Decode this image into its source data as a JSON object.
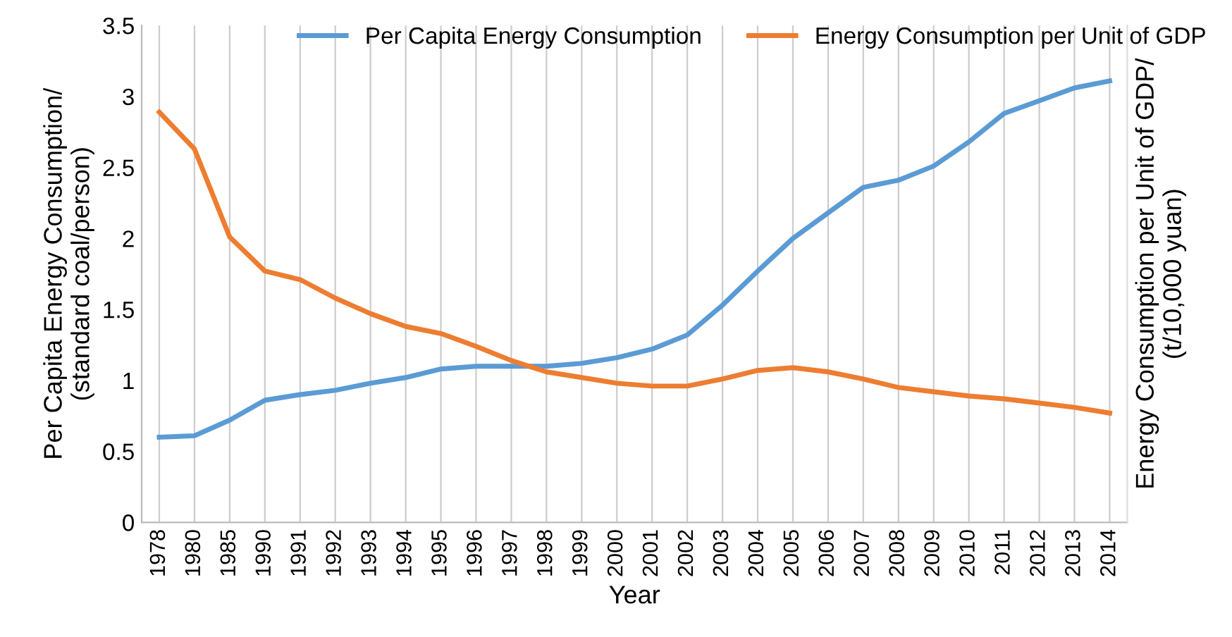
{
  "chart_data": {
    "type": "line",
    "categories": [
      "1978",
      "1980",
      "1985",
      "1990",
      "1991",
      "1992",
      "1993",
      "1994",
      "1995",
      "1996",
      "1997",
      "1998",
      "1999",
      "2000",
      "2001",
      "2002",
      "2003",
      "2004",
      "2005",
      "2006",
      "2007",
      "2008",
      "2009",
      "2010",
      "2011",
      "2012",
      "2013",
      "2014"
    ],
    "series": [
      {
        "name": "Per Capita Energy Consumption",
        "color": "#5b9bd5",
        "values": [
          0.6,
          0.61,
          0.72,
          0.86,
          0.9,
          0.93,
          0.98,
          1.02,
          1.08,
          1.1,
          1.1,
          1.1,
          1.12,
          1.16,
          1.22,
          1.32,
          1.53,
          1.77,
          2.0,
          2.18,
          2.36,
          2.41,
          2.51,
          2.68,
          2.88,
          2.97,
          3.06,
          3.11
        ]
      },
      {
        "name": "Energy Consumption per Unit of GDP",
        "color": "#ed7d31",
        "values": [
          2.89,
          2.63,
          2.01,
          1.77,
          1.71,
          1.58,
          1.47,
          1.38,
          1.33,
          1.24,
          1.14,
          1.06,
          1.02,
          0.98,
          0.96,
          0.96,
          1.01,
          1.07,
          1.09,
          1.06,
          1.01,
          0.95,
          0.92,
          0.89,
          0.87,
          0.84,
          0.81,
          0.77
        ]
      }
    ],
    "xlabel": "Year",
    "ylabel": "Per Capita Energy Consumption/\n(standard coal/person)",
    "y2label": "Energy Consumption per Unit of GDP/\n(t/10,000 yuan)",
    "ylim": [
      0,
      3.5
    ],
    "yticks": [
      0,
      0.5,
      1,
      1.5,
      2,
      2.5,
      3,
      3.5
    ],
    "grid": "x",
    "legend": "top",
    "marker": "none",
    "line_style": "solid"
  }
}
